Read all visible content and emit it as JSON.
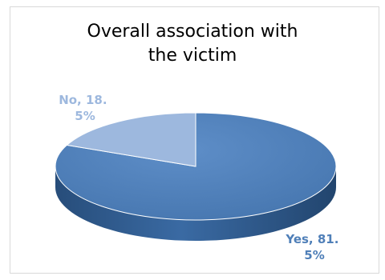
{
  "chart_data": {
    "type": "pie",
    "title_lines": [
      "Overall association with",
      "the victim"
    ],
    "slices": [
      {
        "label_lines": [
          "Yes, 81.",
          "5%"
        ],
        "value": 81.5,
        "color": "#4f7fb8",
        "side_color": "#2f5a8c"
      },
      {
        "label_lines": [
          "No, 18.",
          "5%"
        ],
        "value": 18.5,
        "color": "#9db8de",
        "side_color": "#7495c4"
      }
    ],
    "legend": "none",
    "style": "3d"
  }
}
